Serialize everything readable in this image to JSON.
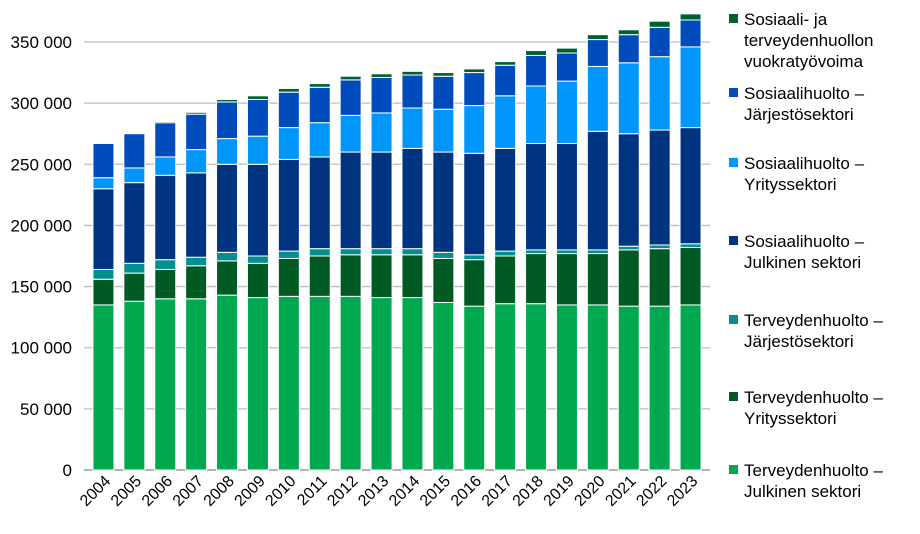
{
  "chart_data": {
    "type": "bar",
    "stacked": true,
    "title": "",
    "xlabel": "",
    "ylabel": "",
    "ylim": [
      0,
      350000
    ],
    "yticks": [
      0,
      50000,
      100000,
      150000,
      200000,
      250000,
      300000,
      350000
    ],
    "ytick_labels": [
      "0",
      "50 000",
      "100 000",
      "150 000",
      "200 000",
      "250 000",
      "300 000",
      "350 000"
    ],
    "grid": "horizontal",
    "legend_position": "right",
    "categories": [
      "2004",
      "2005",
      "2006",
      "2007",
      "2008",
      "2009",
      "2010",
      "2011",
      "2012",
      "2013",
      "2014",
      "2015",
      "2016",
      "2017",
      "2018",
      "2019",
      "2020",
      "2021",
      "2022",
      "2023"
    ],
    "series": [
      {
        "name": "Terveydenhuolto – Julkinen sektori",
        "color": "#00a84f",
        "values": [
          135000,
          138000,
          140000,
          140000,
          143000,
          141000,
          142000,
          142000,
          142000,
          141000,
          141000,
          137000,
          134000,
          136000,
          136000,
          135000,
          135000,
          134000,
          134000,
          135000
        ]
      },
      {
        "name": "Terveydenhuolto – Yrityssektori",
        "color": "#005a23",
        "values": [
          21000,
          23000,
          24000,
          27000,
          28000,
          28000,
          31000,
          33000,
          34000,
          35000,
          35000,
          36000,
          38000,
          39000,
          41000,
          42000,
          42000,
          46000,
          47000,
          47000
        ]
      },
      {
        "name": "Terveydenhuolto – Järjestösektori",
        "color": "#009090",
        "values": [
          8000,
          8000,
          8000,
          7000,
          7000,
          6000,
          6000,
          6000,
          5000,
          5000,
          5000,
          5000,
          4000,
          4000,
          3000,
          3000,
          3000,
          3000,
          3000,
          3000
        ]
      },
      {
        "name": "Sosiaalihuolto – Julkinen sektori",
        "color": "#003380",
        "values": [
          66000,
          66000,
          69000,
          69000,
          72000,
          75000,
          75000,
          75000,
          79000,
          79000,
          82000,
          82000,
          83000,
          84000,
          87000,
          87000,
          97000,
          92000,
          94000,
          95000
        ]
      },
      {
        "name": "Sosiaalihuolto – Yrityssektori",
        "color": "#0096fa",
        "values": [
          9000,
          12000,
          15000,
          19000,
          21000,
          23000,
          26000,
          28000,
          30000,
          32000,
          33000,
          35000,
          39000,
          43000,
          47000,
          51000,
          53000,
          58000,
          60000,
          66000
        ]
      },
      {
        "name": "Sosiaalihuolto – Järjestösektori",
        "color": "#004cbd",
        "values": [
          28000,
          28000,
          28000,
          29000,
          30000,
          30000,
          29000,
          29000,
          29000,
          29000,
          27000,
          27000,
          27000,
          25000,
          25000,
          23000,
          22000,
          23000,
          24000,
          22000
        ]
      },
      {
        "name": "Sosiaali- ja terveydenhuollon vuokratyövoima",
        "color": "#006030",
        "values": [
          0,
          0,
          1000,
          1500,
          2000,
          3000,
          3000,
          3000,
          3000,
          3000,
          3000,
          3000,
          3000,
          3000,
          4000,
          4000,
          4000,
          4000,
          5000,
          5000
        ]
      }
    ],
    "legend": [
      {
        "lines": [
          "Sosiaali- ja",
          "terveydenhuollon",
          "vuokratyövoima"
        ],
        "series": 6
      },
      {
        "lines": [
          "Sosiaalihuolto –",
          "Järjestösektori"
        ],
        "series": 5
      },
      {
        "lines": [
          "Sosiaalihuolto –",
          "Yrityssektori"
        ],
        "series": 4
      },
      {
        "lines": [
          "Sosiaalihuolto –",
          "Julkinen sektori"
        ],
        "series": 3
      },
      {
        "lines": [
          "Terveydenhuolto –",
          "Järjestösektori"
        ],
        "series": 2
      },
      {
        "lines": [
          "Terveydenhuolto –",
          "Yrityssektori"
        ],
        "series": 1
      },
      {
        "lines": [
          "Terveydenhuolto –",
          "Julkinen sektori"
        ],
        "series": 0
      }
    ]
  }
}
